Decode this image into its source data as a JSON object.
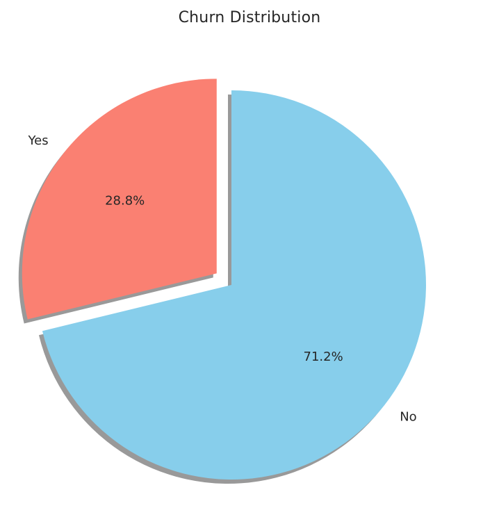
{
  "chart_data": {
    "type": "pie",
    "title": "Churn Distribution",
    "categories": [
      "No",
      "Yes"
    ],
    "values": [
      71.2,
      28.8
    ],
    "percent_labels": [
      "71.2%",
      "28.8%"
    ],
    "colors": [
      "#87ceeb",
      "#fa8072"
    ],
    "exploded": [
      false,
      true
    ],
    "shadow": true,
    "start_angle_deg": 90,
    "direction": "clockwise"
  }
}
